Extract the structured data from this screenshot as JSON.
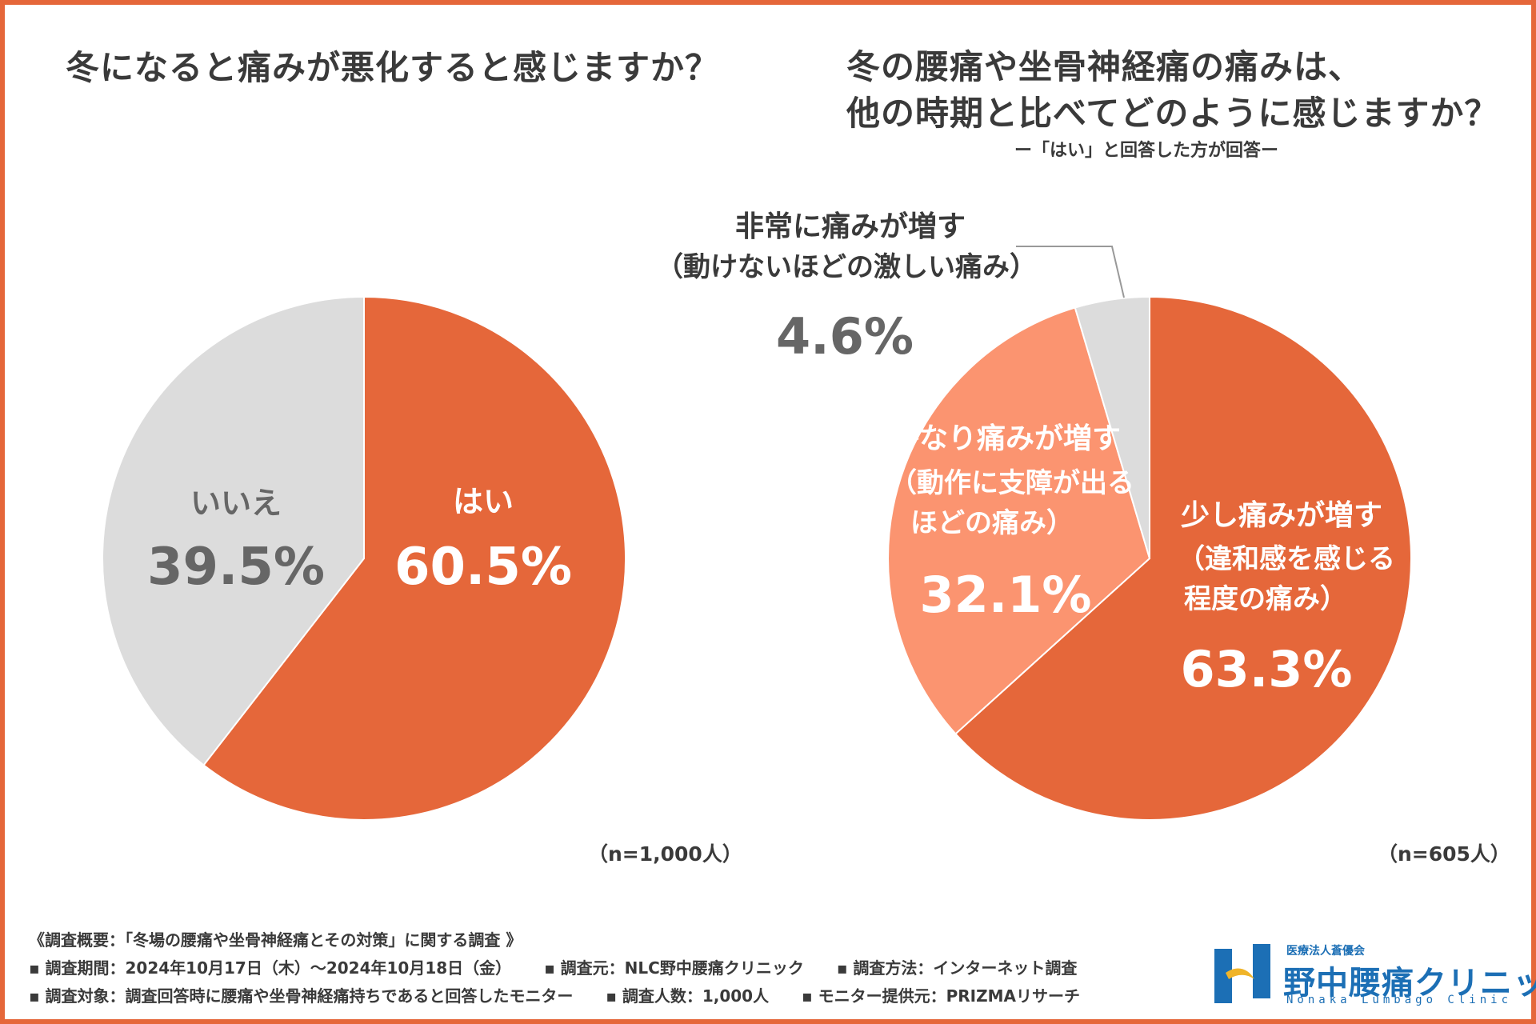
{
  "colors": {
    "frame": "#e5673a",
    "primary": "#e5673a",
    "secondary": "#fb9470",
    "neutral": "#dcdcdc",
    "text": "#3a3a3a",
    "muted": "#666666",
    "logo": "#1c6fb5"
  },
  "left": {
    "title": "冬になると痛みが悪化すると感じますか？",
    "n": "（n=1,000人）"
  },
  "right": {
    "title_line1": "冬の腰痛や坐骨神経痛の痛みは、",
    "title_line2": "他の時期と比べてどのように感じますか？",
    "subtitle": "ー「はい」と回答した方が回答ー",
    "n": "（n=605人）"
  },
  "chart_data": [
    {
      "type": "pie",
      "title": "冬になると痛みが悪化すると感じますか？",
      "start": "12 o'clock, clockwise",
      "slices": [
        {
          "label": "はい",
          "sublabel": "",
          "value": 60.5,
          "display": "60.5%",
          "color": "#e5673a"
        },
        {
          "label": "いいえ",
          "sublabel": "",
          "value": 39.5,
          "display": "39.5%",
          "color": "#dcdcdc"
        }
      ]
    },
    {
      "type": "pie",
      "title": "冬の腰痛や坐骨神経痛の痛みは、他の時期と比べてどのように感じますか？",
      "start": "12 o'clock, clockwise",
      "slices": [
        {
          "label": "少し痛みが増す",
          "sublabel": "（違和感を感じる",
          "sublabel2": "程度の痛み）",
          "value": 63.3,
          "display": "63.3%",
          "color": "#e5673a"
        },
        {
          "label": "かなり痛みが増す",
          "sublabel": "（動作に支障が出る",
          "sublabel2": "ほどの痛み）",
          "value": 32.1,
          "display": "32.1%",
          "color": "#fb9470"
        },
        {
          "label": "非常に痛みが増す",
          "sublabel": "（動けないほどの激しい痛み）",
          "sublabel2": "",
          "value": 4.6,
          "display": "4.6%",
          "color": "#dcdcdc"
        }
      ]
    }
  ],
  "footer": {
    "overview": "《調査概要：「冬場の腰痛や坐骨神経痛とその対策」に関する調査 》",
    "period": "▪ 調査期間：2024年10月17日（木）～2024年10月18日（金）",
    "source": "▪ 調査元：NLC野中腰痛クリニック",
    "method": "▪ 調査方法：インターネット調査",
    "target": "▪ 調査対象：調査回答時に腰痛や坐骨神経痛持ちであると回答したモニター",
    "count": "▪ 調査人数：1,000人",
    "provider": "▪ モニター提供元：PRIZMAリサーチ"
  },
  "logo": {
    "org": "医療法人蒼優会",
    "name": "野中腰痛クリニック",
    "roman": "Nonaka Lumbago Clinic"
  }
}
